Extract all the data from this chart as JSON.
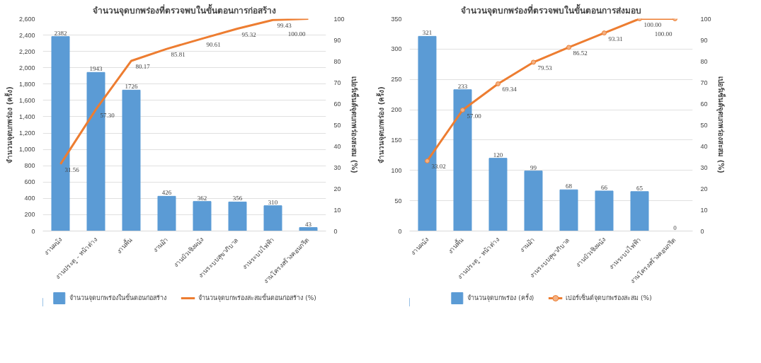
{
  "chart_data": [
    {
      "type": "bar",
      "title": "จำนวนจุดบกพร่องที่ตรวจพบในขั้นตอนการก่อสร้าง",
      "ylabel": "จำนวนจุดบกพร่อง (ครั้ง)",
      "y2label": "เปอร์เซ็นต์จุดบกพร่องสะสม (%)",
      "categories": [
        "งานผนัง",
        "งานประตู - หน้าต่าง",
        "งานพื้น",
        "งานฝ้า",
        "งานบัวเชิงผนัง",
        "งานระบบสุขาภิบาล",
        "งานระบบไฟฟ้า",
        "งานโครงสร้างคอนกรีต"
      ],
      "series": [
        {
          "name": "จำนวนจุดบกพร่องในขั้นตอนก่อสร้าง",
          "color": "#5b9bd5",
          "values": [
            2382,
            1943,
            1726,
            426,
            362,
            356,
            310,
            43
          ],
          "value_labels": [
            "2382",
            "1943",
            "1726",
            "426",
            "362",
            "356",
            "310",
            "43"
          ]
        },
        {
          "name": "จำนวนจุดบกพร่องสะสมขั้นตอนก่อสร้าง (%)",
          "type": "line",
          "axis": "y2",
          "color": "#ed7d31",
          "marker": "none",
          "values": [
            31.56,
            57.3,
            80.17,
            85.81,
            90.61,
            95.32,
            99.43,
            100.0
          ],
          "value_labels": [
            "31.56",
            "57.30",
            "80.17",
            "85.81",
            "90.61",
            "95.32",
            "99.43",
            "100.00"
          ]
        }
      ],
      "ylim": [
        0,
        2600
      ],
      "yticks": [
        0,
        200,
        400,
        600,
        800,
        {
          "value": 1000,
          "label": "1,000"
        },
        {
          "value": 1200,
          "label": "1,200"
        },
        {
          "value": 1400,
          "label": "1,400"
        },
        {
          "value": 1600,
          "label": "1,600"
        },
        {
          "value": 1800,
          "label": "1,800"
        },
        {
          "value": 2000,
          "label": "2,000"
        },
        {
          "value": 2200,
          "label": "2,200"
        },
        {
          "value": 2400,
          "label": "2,400"
        },
        {
          "value": 2600,
          "label": "2,600"
        }
      ],
      "y2lim": [
        0,
        100
      ],
      "y2ticks": [
        0,
        10,
        20,
        30,
        40,
        50,
        60,
        70,
        80,
        90,
        100
      ],
      "grid": "y",
      "legend": "bottom",
      "line_style": "solid"
    },
    {
      "type": "bar",
      "title": "จำนวนจุดบกพร่องที่ตรวจพบในขั้นตอนการส่งมอบ",
      "ylabel": "จำนวนจุดบกพร่อง (ครั้ง)",
      "y2label": "เปอร์เซ็นต์จุดบกพร่องสะสม (%)",
      "categories": [
        "งานผนัง",
        "งานพื้น",
        "งานประตู - หน้าต่าง",
        "งานฝ้า",
        "งานระบบสุขาภิบาล",
        "งานบัวเชิงผนัง",
        "งานระบบไฟฟ้า",
        "งานโครงสร้างคอนกรีต"
      ],
      "series": [
        {
          "name": "จำนวนจุดบกพร่อง (ครั้ง)",
          "color": "#5b9bd5",
          "values": [
            321,
            233,
            120,
            99,
            68,
            66,
            65,
            0
          ],
          "value_labels": [
            "321",
            "233",
            "120",
            "99",
            "68",
            "66",
            "65",
            "0"
          ]
        },
        {
          "name": "เปอร์เซ็นต์จุดบกพร่องสะสม (%)",
          "type": "line",
          "axis": "y2",
          "color": "#ed7d31",
          "marker": "circle",
          "values": [
            33.02,
            57.0,
            69.34,
            79.53,
            86.52,
            93.31,
            100.0,
            100.0
          ],
          "value_labels": [
            "33.02",
            "57.00",
            "69.34",
            "79.53",
            "86.52",
            "93.31",
            "100.00",
            "100.00"
          ]
        }
      ],
      "ylim": [
        0,
        350
      ],
      "yticks": [
        0,
        50,
        100,
        150,
        200,
        250,
        300,
        350
      ],
      "y2lim": [
        0,
        100
      ],
      "y2ticks": [
        0,
        10,
        20,
        30,
        40,
        50,
        60,
        70,
        80,
        90,
        100
      ],
      "grid": "y",
      "legend": "bottom",
      "line_style": "solid"
    }
  ]
}
